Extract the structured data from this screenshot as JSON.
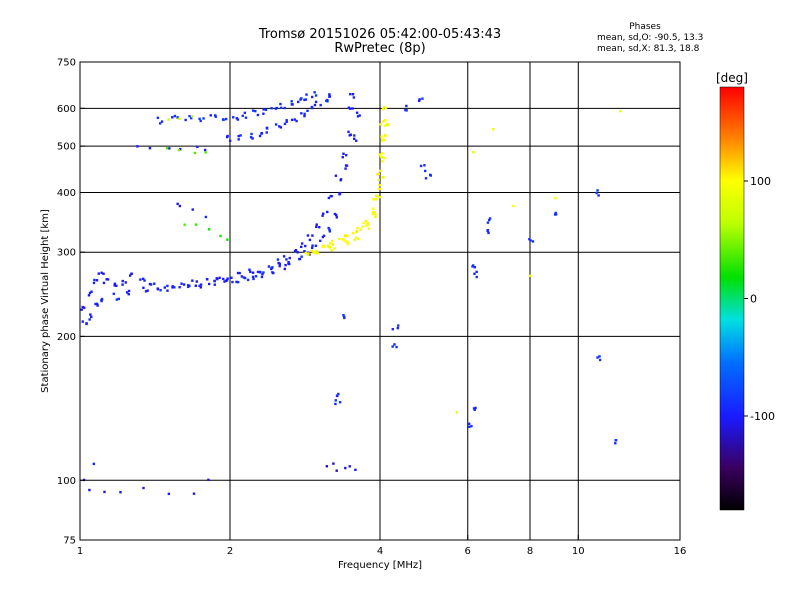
{
  "title_line1": "Tromsø 20151026 05:42:00-05:43:43",
  "title_line2": "RwPretec (8p)",
  "phase_box": {
    "title": "Phases",
    "line1": "mean, sd,O: -90.5, 13.3",
    "line2": "mean, sd,X:  81.3, 18.8"
  },
  "colorbar": {
    "unit_label": "[deg]",
    "ticks": [
      {
        "value": 100,
        "label": "100"
      },
      {
        "value": 0,
        "label": "0"
      },
      {
        "value": -100,
        "label": "-100"
      }
    ],
    "range": [
      -180,
      180
    ]
  },
  "chart_data": {
    "type": "scatter",
    "xlabel": "Frequency [MHz]",
    "ylabel": "Stationary phase Virtual Height [km]",
    "x_scale": "log",
    "y_scale": "log",
    "xlim": [
      1,
      16
    ],
    "ylim": [
      75,
      750
    ],
    "x_ticks": [
      {
        "value": 1,
        "label": "1"
      },
      {
        "value": 2,
        "label": "2"
      },
      {
        "value": 4,
        "label": "4"
      },
      {
        "value": 6,
        "label": "6"
      },
      {
        "value": 8,
        "label": "8"
      },
      {
        "value": 10,
        "label": "10"
      },
      {
        "value": 16,
        "label": "16"
      }
    ],
    "y_ticks": [
      {
        "value": 75,
        "label": "75"
      },
      {
        "value": 100,
        "label": "100"
      },
      {
        "value": 200,
        "label": "200"
      },
      {
        "value": 300,
        "label": "300"
      },
      {
        "value": 400,
        "label": "400"
      },
      {
        "value": 500,
        "label": "500"
      },
      {
        "value": 600,
        "label": "600"
      },
      {
        "value": 750,
        "label": "750"
      }
    ],
    "x_grid": [
      2,
      4,
      6,
      8,
      10
    ],
    "y_grid": [
      100,
      200,
      300,
      400,
      500,
      600
    ],
    "grid": true,
    "phase_unit": "deg",
    "traces": [
      {
        "trace": "o-mode-low-F",
        "phase": -100,
        "points": [
          [
            1.02,
            230
          ],
          [
            1.05,
            245
          ],
          [
            1.08,
            262
          ],
          [
            1.1,
            270
          ],
          [
            1.13,
            262
          ],
          [
            1.17,
            255
          ],
          [
            1.22,
            258
          ],
          [
            1.27,
            270
          ],
          [
            1.33,
            265
          ],
          [
            1.4,
            256
          ],
          [
            1.5,
            252
          ],
          [
            1.6,
            255
          ],
          [
            1.7,
            258
          ],
          [
            1.8,
            260
          ],
          [
            1.9,
            262
          ],
          [
            2.0,
            264
          ],
          [
            2.1,
            268
          ],
          [
            2.2,
            272
          ],
          [
            2.3,
            276
          ],
          [
            2.4,
            280
          ],
          [
            2.5,
            286
          ],
          [
            2.6,
            293
          ],
          [
            2.7,
            300
          ],
          [
            2.8,
            310
          ],
          [
            2.9,
            322
          ],
          [
            3.0,
            338
          ],
          [
            3.1,
            360
          ],
          [
            3.2,
            390
          ],
          [
            3.3,
            430
          ],
          [
            3.4,
            480
          ],
          [
            3.45,
            530
          ],
          [
            3.5,
            600
          ],
          [
            3.52,
            640
          ]
        ]
      },
      {
        "trace": "o-mode-lower-band",
        "phase": -95,
        "points": [
          [
            1.02,
            212
          ],
          [
            1.05,
            220
          ],
          [
            1.08,
            232
          ],
          [
            1.12,
            238
          ],
          [
            1.18,
            242
          ],
          [
            1.25,
            248
          ],
          [
            1.35,
            250
          ],
          [
            1.45,
            250
          ],
          [
            1.55,
            252
          ],
          [
            1.65,
            254
          ],
          [
            1.75,
            256
          ],
          [
            1.85,
            258
          ],
          [
            1.95,
            260
          ],
          [
            2.05,
            262
          ],
          [
            2.15,
            264
          ],
          [
            2.25,
            266
          ],
          [
            2.35,
            270
          ],
          [
            2.45,
            274
          ],
          [
            2.55,
            278
          ],
          [
            2.65,
            284
          ],
          [
            2.75,
            292
          ],
          [
            2.85,
            300
          ],
          [
            2.95,
            308
          ],
          [
            3.05,
            320
          ],
          [
            3.15,
            335
          ],
          [
            3.25,
            360
          ],
          [
            3.35,
            395
          ],
          [
            3.45,
            450
          ],
          [
            3.55,
            520
          ],
          [
            3.6,
            580
          ]
        ]
      },
      {
        "trace": "x-mode-F",
        "phase": 100,
        "points": [
          [
            2.85,
            300
          ],
          [
            2.95,
            303
          ],
          [
            3.05,
            306
          ],
          [
            3.15,
            310
          ],
          [
            3.25,
            314
          ],
          [
            3.35,
            318
          ],
          [
            3.45,
            322
          ],
          [
            3.55,
            328
          ],
          [
            3.65,
            336
          ],
          [
            3.75,
            348
          ],
          [
            3.85,
            365
          ],
          [
            3.92,
            385
          ],
          [
            3.97,
            410
          ],
          [
            4.0,
            440
          ],
          [
            4.03,
            480
          ],
          [
            4.05,
            520
          ],
          [
            4.07,
            560
          ],
          [
            4.08,
            600
          ]
        ]
      },
      {
        "trace": "x-mode-F-branch",
        "phase": 95,
        "points": [
          [
            3.0,
            300
          ],
          [
            3.2,
            305
          ],
          [
            3.4,
            312
          ],
          [
            3.6,
            322
          ],
          [
            3.8,
            340
          ],
          [
            3.9,
            360
          ],
          [
            3.98,
            395
          ],
          [
            4.02,
            430
          ],
          [
            4.05,
            470
          ],
          [
            4.08,
            520
          ],
          [
            4.1,
            560
          ]
        ]
      },
      {
        "trace": "o-mode-upper-F1",
        "phase": -90,
        "points": [
          [
            1.45,
            565
          ],
          [
            1.55,
            570
          ],
          [
            1.65,
            570
          ],
          [
            1.75,
            572
          ],
          [
            1.85,
            572
          ],
          [
            1.95,
            574
          ],
          [
            2.05,
            576
          ],
          [
            2.15,
            580
          ],
          [
            2.25,
            586
          ],
          [
            2.35,
            592
          ],
          [
            2.45,
            600
          ],
          [
            2.55,
            608
          ],
          [
            2.65,
            616
          ],
          [
            2.75,
            624
          ],
          [
            2.85,
            632
          ],
          [
            2.95,
            640
          ]
        ]
      },
      {
        "trace": "o-mode-upper-F2",
        "phase": -95,
        "points": [
          [
            2.0,
            520
          ],
          [
            2.1,
            522
          ],
          [
            2.2,
            526
          ],
          [
            2.3,
            532
          ],
          [
            2.4,
            540
          ],
          [
            2.5,
            550
          ],
          [
            2.6,
            560
          ],
          [
            2.7,
            572
          ],
          [
            2.8,
            585
          ],
          [
            2.9,
            598
          ],
          [
            3.0,
            612
          ],
          [
            3.1,
            625
          ],
          [
            3.2,
            638
          ]
        ]
      },
      {
        "trace": "o-mode-upper-F3",
        "phase": -100,
        "points": [
          [
            1.3,
            505
          ],
          [
            1.4,
            500
          ],
          [
            1.5,
            496
          ],
          [
            1.6,
            494
          ],
          [
            1.7,
            494
          ],
          [
            1.8,
            496
          ]
        ]
      },
      {
        "trace": "x-mode-upper-F",
        "phase": 40,
        "points": [
          [
            1.5,
            488
          ],
          [
            1.6,
            484
          ],
          [
            1.7,
            482
          ],
          [
            1.8,
            484
          ]
        ]
      },
      {
        "trace": "x-mode-upper-F-yellow",
        "phase": 70,
        "points": [
          [
            1.5,
            570
          ],
          [
            1.6,
            568
          ],
          [
            1.7,
            570
          ]
        ]
      },
      {
        "trace": "o-mode-mid",
        "phase": -100,
        "points": [
          [
            1.55,
            375
          ],
          [
            1.6,
            370
          ],
          [
            1.7,
            365
          ],
          [
            1.8,
            360
          ]
        ]
      },
      {
        "trace": "x-mode-mid",
        "phase": 30,
        "points": [
          [
            1.6,
            345
          ],
          [
            1.7,
            338
          ],
          [
            1.8,
            332
          ],
          [
            1.9,
            326
          ],
          [
            1.95,
            322
          ]
        ]
      },
      {
        "trace": "es-layer",
        "phase": -110,
        "points": [
          [
            3.1,
            106
          ],
          [
            3.2,
            107
          ],
          [
            3.3,
            106
          ],
          [
            3.4,
            105
          ],
          [
            3.5,
            106
          ],
          [
            3.55,
            105
          ]
        ]
      },
      {
        "trace": "low-scatter",
        "phase": -105,
        "points": [
          [
            1.05,
            95
          ],
          [
            1.12,
            94
          ],
          [
            1.2,
            95
          ],
          [
            1.35,
            95
          ],
          [
            1.5,
            94
          ],
          [
            1.7,
            95
          ],
          [
            1.8,
            100
          ],
          [
            1.03,
            100
          ],
          [
            1.08,
            108
          ]
        ]
      },
      {
        "trace": "sporadic",
        "phase": -90,
        "points": [
          [
            4.3,
            210
          ],
          [
            4.3,
            190
          ],
          [
            3.4,
            220
          ],
          [
            6.2,
            280
          ],
          [
            6.2,
            270
          ],
          [
            6.2,
            140
          ],
          [
            6.1,
            130
          ],
          [
            6.6,
            350
          ],
          [
            6.6,
            330
          ],
          [
            8.0,
            320
          ],
          [
            9.0,
            360
          ],
          [
            11.0,
            400
          ],
          [
            11.0,
            180
          ],
          [
            12.0,
            120
          ],
          [
            4.9,
            450
          ],
          [
            5.0,
            430
          ],
          [
            4.5,
            600
          ],
          [
            4.8,
            620
          ],
          [
            3.3,
            150
          ],
          [
            3.3,
            145
          ]
        ]
      },
      {
        "trace": "sporadic-warm",
        "phase": 90,
        "points": [
          [
            6.2,
            480
          ],
          [
            6.7,
            550
          ],
          [
            7.5,
            370
          ],
          [
            8.0,
            270
          ],
          [
            9.0,
            390
          ],
          [
            5.7,
            140
          ],
          [
            12.0,
            600
          ]
        ]
      }
    ]
  }
}
